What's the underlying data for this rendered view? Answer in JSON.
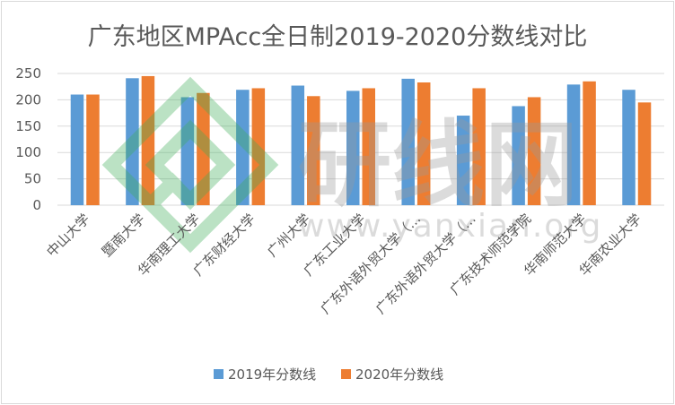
{
  "chart_data": {
    "type": "bar",
    "title": "广东地区MPAcc全日制2019-2020分数线对比",
    "categories": [
      "中山大学",
      "暨南大学",
      "华南理工大学",
      "广东财经大学",
      "广州大学",
      "广东工业大学",
      "广东外语外贸大学（…",
      "广东外语外贸大学（…",
      "广东技术师范学院",
      "华南师范大学",
      "华南农业大学"
    ],
    "series": [
      {
        "name": "2019年分数线",
        "color": "#5b9bd5",
        "values": [
          210,
          241,
          205,
          219,
          227,
          217,
          240,
          170,
          188,
          229,
          219
        ]
      },
      {
        "name": "2020年分数线",
        "color": "#ed7d31",
        "values": [
          210,
          245,
          213,
          222,
          207,
          222,
          233,
          222,
          205,
          235,
          195
        ]
      }
    ],
    "ylim": [
      0,
      250
    ],
    "yticks": [
      0,
      50,
      100,
      150,
      200,
      250
    ],
    "grid": true,
    "legend_position": "bottom"
  },
  "watermark": {
    "text_main": "研线网",
    "text_url": "www.yanxian.org",
    "colors": {
      "gray": "#9a9a9a",
      "green": "#3fae5a"
    }
  }
}
